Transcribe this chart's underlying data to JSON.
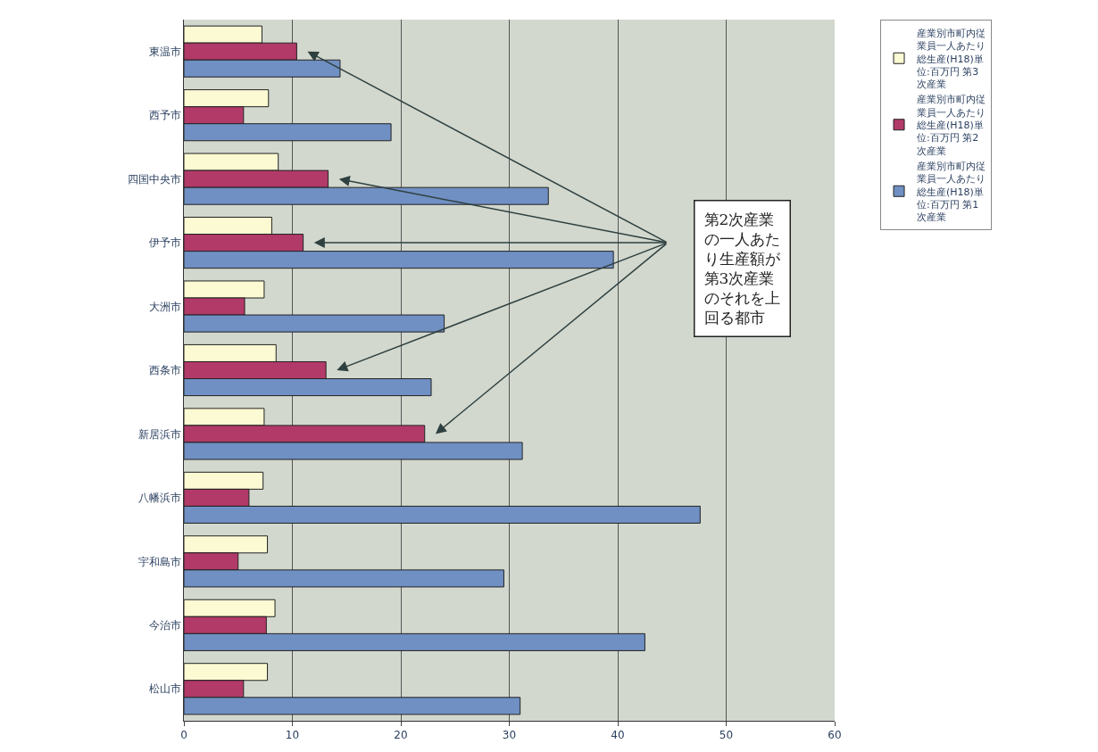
{
  "chart_data": {
    "type": "bar",
    "orientation": "horizontal",
    "categories": [
      "東温市",
      "西予市",
      "四国中央市",
      "伊予市",
      "大洲市",
      "西条市",
      "新居浜市",
      "八幡浜市",
      "宇和島市",
      "今治市",
      "松山市"
    ],
    "series": [
      {
        "name": "産業別市町内従業員一人あたり総生産(H18)単位:百万円 第3次産業",
        "color": "#fcfad2",
        "values": [
          7.2,
          7.8,
          8.7,
          8.1,
          7.4,
          8.5,
          7.4,
          7.3,
          7.7,
          8.4,
          7.7
        ]
      },
      {
        "name": "産業別市町内従業員一人あたり総生産(H18)単位:百万円 第2次産業",
        "color": "#b23a68",
        "values": [
          10.4,
          5.5,
          13.3,
          11.0,
          5.6,
          13.1,
          22.2,
          6.0,
          5.0,
          7.6,
          5.5
        ]
      },
      {
        "name": "産業別市町内従業員一人あたり総生産(H18)単位:百万円 第1次産業",
        "color": "#7090c4",
        "values": [
          14.4,
          19.1,
          33.6,
          39.6,
          24.0,
          22.8,
          31.2,
          47.6,
          29.5,
          42.5,
          31.0
        ]
      }
    ],
    "xlim": [
      0,
      60
    ],
    "xticks": [
      0,
      10,
      20,
      30,
      40,
      50,
      60
    ],
    "grid": "x",
    "legend": "top right",
    "annotations": [
      "第2次産業の一人あたり生産額が第3次産業のそれを上回る都市"
    ]
  }
}
